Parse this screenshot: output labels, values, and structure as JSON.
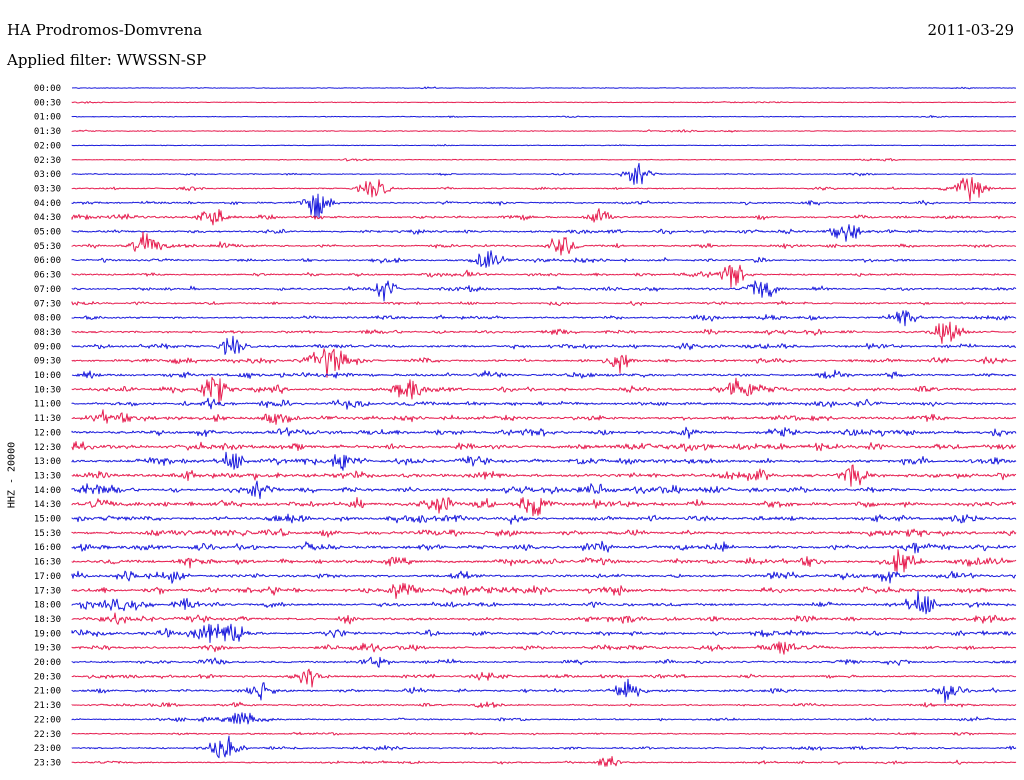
{
  "header": {
    "station": "HA Prodromos-Domvrena",
    "date": "2011-03-29",
    "filter": "Applied filter: WWSSN-SP"
  },
  "chart_data": {
    "type": "line",
    "title": "HA Prodromos-Domvrena",
    "ylabel": "HHZ - 20000",
    "colors": {
      "odd_trace": "#1a1adc",
      "even_trace": "#e61e50"
    },
    "rows": [
      {
        "label": "00:00",
        "activity": 0.05
      },
      {
        "label": "00:30",
        "activity": 0.08
      },
      {
        "label": "01:00",
        "activity": 0.08
      },
      {
        "label": "01:30",
        "activity": 0.1
      },
      {
        "label": "02:00",
        "activity": 0.05
      },
      {
        "label": "02:30",
        "activity": 0.1
      },
      {
        "label": "03:00",
        "activity": 0.15
      },
      {
        "label": "03:30",
        "activity": 0.25
      },
      {
        "label": "04:00",
        "activity": 0.4
      },
      {
        "label": "04:30",
        "activity": 0.45
      },
      {
        "label": "05:00",
        "activity": 0.5
      },
      {
        "label": "05:30",
        "activity": 0.45
      },
      {
        "label": "06:00",
        "activity": 0.45
      },
      {
        "label": "06:30",
        "activity": 0.4
      },
      {
        "label": "07:00",
        "activity": 0.45
      },
      {
        "label": "07:30",
        "activity": 0.4
      },
      {
        "label": "08:00",
        "activity": 0.5
      },
      {
        "label": "08:30",
        "activity": 0.5
      },
      {
        "label": "09:00",
        "activity": 0.6
      },
      {
        "label": "09:30",
        "activity": 0.65
      },
      {
        "label": "10:00",
        "activity": 0.65
      },
      {
        "label": "10:30",
        "activity": 0.7
      },
      {
        "label": "11:00",
        "activity": 0.7
      },
      {
        "label": "11:30",
        "activity": 0.75
      },
      {
        "label": "12:00",
        "activity": 0.85
      },
      {
        "label": "12:30",
        "activity": 0.9
      },
      {
        "label": "13:00",
        "activity": 0.85
      },
      {
        "label": "13:30",
        "activity": 0.85
      },
      {
        "label": "14:00",
        "activity": 0.85
      },
      {
        "label": "14:30",
        "activity": 0.85
      },
      {
        "label": "15:00",
        "activity": 0.8
      },
      {
        "label": "15:30",
        "activity": 0.8
      },
      {
        "label": "16:00",
        "activity": 0.85
      },
      {
        "label": "16:30",
        "activity": 0.8
      },
      {
        "label": "17:00",
        "activity": 0.75
      },
      {
        "label": "17:30",
        "activity": 0.8
      },
      {
        "label": "18:00",
        "activity": 0.75
      },
      {
        "label": "18:30",
        "activity": 0.7
      },
      {
        "label": "19:00",
        "activity": 0.7
      },
      {
        "label": "19:30",
        "activity": 0.55
      },
      {
        "label": "20:00",
        "activity": 0.5
      },
      {
        "label": "20:30",
        "activity": 0.45
      },
      {
        "label": "21:00",
        "activity": 0.5
      },
      {
        "label": "21:30",
        "activity": 0.4
      },
      {
        "label": "22:00",
        "activity": 0.35
      },
      {
        "label": "22:30",
        "activity": 0.25
      },
      {
        "label": "23:00",
        "activity": 0.35
      },
      {
        "label": "23:30",
        "activity": 0.3
      }
    ],
    "events": [
      {
        "row": "03:00",
        "x": 0.6,
        "amp": 0.9
      },
      {
        "row": "03:30",
        "x": 0.32,
        "amp": 0.9
      },
      {
        "row": "03:30",
        "x": 0.95,
        "amp": 1.0
      },
      {
        "row": "04:00",
        "x": 0.26,
        "amp": 1.0
      },
      {
        "row": "04:30",
        "x": 0.15,
        "amp": 0.8
      },
      {
        "row": "04:30",
        "x": 0.56,
        "amp": 0.7
      },
      {
        "row": "05:00",
        "x": 0.82,
        "amp": 0.9
      },
      {
        "row": "05:30",
        "x": 0.08,
        "amp": 1.0
      },
      {
        "row": "05:30",
        "x": 0.52,
        "amp": 0.9
      },
      {
        "row": "06:00",
        "x": 0.44,
        "amp": 0.8
      },
      {
        "row": "06:30",
        "x": 0.7,
        "amp": 1.0
      },
      {
        "row": "07:00",
        "x": 0.33,
        "amp": 0.8
      },
      {
        "row": "07:00",
        "x": 0.73,
        "amp": 1.0
      },
      {
        "row": "08:00",
        "x": 0.88,
        "amp": 0.8
      },
      {
        "row": "08:30",
        "x": 0.93,
        "amp": 0.9
      },
      {
        "row": "09:00",
        "x": 0.17,
        "amp": 0.7
      },
      {
        "row": "09:30",
        "x": 0.27,
        "amp": 1.0
      },
      {
        "row": "09:30",
        "x": 0.58,
        "amp": 0.7
      },
      {
        "row": "10:30",
        "x": 0.15,
        "amp": 0.8
      },
      {
        "row": "10:30",
        "x": 0.36,
        "amp": 0.8
      },
      {
        "row": "10:30",
        "x": 0.71,
        "amp": 0.9
      },
      {
        "row": "13:00",
        "x": 0.29,
        "amp": 1.0
      },
      {
        "row": "13:00",
        "x": 0.17,
        "amp": 0.8
      },
      {
        "row": "13:30",
        "x": 0.83,
        "amp": 0.8
      },
      {
        "row": "14:30",
        "x": 0.49,
        "amp": 1.0
      },
      {
        "row": "14:30",
        "x": 0.39,
        "amp": 0.8
      },
      {
        "row": "16:30",
        "x": 0.88,
        "amp": 0.8
      },
      {
        "row": "17:30",
        "x": 0.35,
        "amp": 0.8
      },
      {
        "row": "18:00",
        "x": 0.9,
        "amp": 1.0
      },
      {
        "row": "19:00",
        "x": 0.17,
        "amp": 1.0
      },
      {
        "row": "19:00",
        "x": 0.14,
        "amp": 0.8
      },
      {
        "row": "19:30",
        "x": 0.75,
        "amp": 0.7
      },
      {
        "row": "20:30",
        "x": 0.25,
        "amp": 1.0
      },
      {
        "row": "21:00",
        "x": 0.2,
        "amp": 0.8
      },
      {
        "row": "21:00",
        "x": 0.59,
        "amp": 0.8
      },
      {
        "row": "21:00",
        "x": 0.93,
        "amp": 0.8
      },
      {
        "row": "22:00",
        "x": 0.18,
        "amp": 0.7
      },
      {
        "row": "23:00",
        "x": 0.16,
        "amp": 1.0
      },
      {
        "row": "23:30",
        "x": 0.57,
        "amp": 0.6
      }
    ]
  }
}
